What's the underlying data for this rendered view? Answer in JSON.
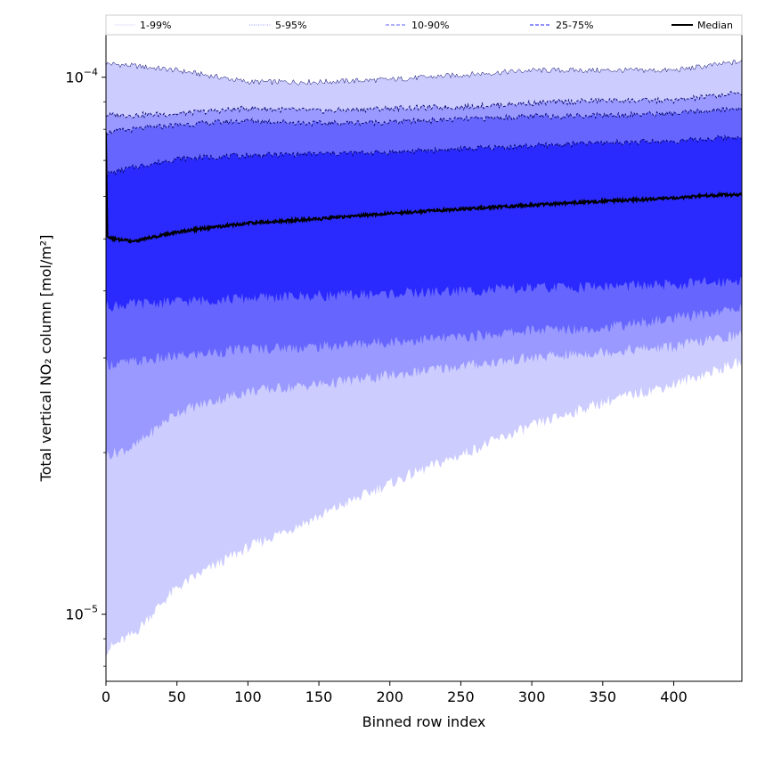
{
  "chart_data": {
    "type": "area",
    "title": "",
    "xlabel": "Binned row index",
    "ylabel": "Total vertical NO₂ column [mol/m²]",
    "xlim": [
      0,
      448
    ],
    "ylim": [
      7.5e-06,
      0.00012
    ],
    "yscale": "log",
    "x_ticks": [
      0,
      50,
      100,
      150,
      200,
      250,
      300,
      350,
      400
    ],
    "y_ticks": [
      {
        "mantissa": "10",
        "exponent": "−5",
        "value": 1e-05
      },
      {
        "mantissa": "10",
        "exponent": "−4",
        "value": 0.0001
      }
    ],
    "x": [
      0,
      1,
      20,
      50,
      100,
      150,
      200,
      250,
      300,
      350,
      400,
      448
    ],
    "bands": [
      {
        "name": "1-99%",
        "color": "#ccccff",
        "lower": [
          8.6e-06,
          8.6e-06,
          9.2e-06,
          1.12e-05,
          1.33e-05,
          1.52e-05,
          1.75e-05,
          1.98e-05,
          2.24e-05,
          2.48e-05,
          2.68e-05,
          2.95e-05
        ],
        "upper": [
          0.000106,
          0.000106,
          0.000105,
          0.000103,
          9.8e-05,
          9.8e-05,
          9.9e-05,
          0.000101,
          0.000103,
          0.000103,
          0.000103,
          0.000107
        ]
      },
      {
        "name": "5-95%",
        "color": "#9999ff",
        "lower": [
          1.98e-05,
          1.98e-05,
          2.05e-05,
          2.38e-05,
          2.6e-05,
          2.68e-05,
          2.78e-05,
          2.9e-05,
          3e-05,
          3.08e-05,
          3.15e-05,
          3.32e-05
        ],
        "upper": [
          8.5e-05,
          8.5e-05,
          8.5e-05,
          8.55e-05,
          8.75e-05,
          8.65e-05,
          8.75e-05,
          8.8e-05,
          8.95e-05,
          9.05e-05,
          9.05e-05,
          9.35e-05
        ]
      },
      {
        "name": "10-90%",
        "color": "#6666ff",
        "lower": [
          2.92e-05,
          2.92e-05,
          2.95e-05,
          3.02e-05,
          3.12e-05,
          3.15e-05,
          3.22e-05,
          3.28e-05,
          3.38e-05,
          3.42e-05,
          3.55e-05,
          3.72e-05
        ],
        "upper": [
          7.9e-05,
          7.9e-05,
          8e-05,
          8.15e-05,
          8.3e-05,
          8.2e-05,
          8.25e-05,
          8.35e-05,
          8.45e-05,
          8.5e-05,
          8.55e-05,
          8.75e-05
        ]
      },
      {
        "name": "25-75%",
        "color": "#2a2aff",
        "lower": [
          3.75e-05,
          3.75e-05,
          3.78e-05,
          3.82e-05,
          3.88e-05,
          3.92e-05,
          3.95e-05,
          4e-05,
          4.05e-05,
          4.08e-05,
          4.1e-05,
          4.2e-05
        ],
        "upper": [
          6.6e-05,
          6.6e-05,
          6.8e-05,
          7.05e-05,
          7.15e-05,
          7.2e-05,
          7.25e-05,
          7.35e-05,
          7.45e-05,
          7.55e-05,
          7.6e-05,
          7.75e-05
        ]
      }
    ],
    "median": {
      "name": "Median",
      "color": "#000000",
      "x": [
        0,
        0.5,
        1,
        5,
        20,
        50,
        100,
        150,
        200,
        250,
        300,
        350,
        400,
        420,
        448
      ],
      "values": [
        7.9e-05,
        6.2e-05,
        5.05e-05,
        5e-05,
        4.95e-05,
        5.15e-05,
        5.35e-05,
        5.45e-05,
        5.58e-05,
        5.68e-05,
        5.78e-05,
        5.88e-05,
        5.95e-05,
        6.02e-05,
        6.05e-05
      ]
    },
    "legend": {
      "placement": "top",
      "entries": [
        {
          "label": "1-99%",
          "style": "solid-thin",
          "color": "#ccccff"
        },
        {
          "label": "5-95%",
          "style": "dotted",
          "color": "#9999ff"
        },
        {
          "label": "10-90%",
          "style": "dashed",
          "color": "#8080ff"
        },
        {
          "label": "25-75%",
          "style": "dashed",
          "color": "#4d4dff"
        },
        {
          "label": "Median",
          "style": "solid-thick",
          "color": "#000000"
        }
      ]
    }
  }
}
